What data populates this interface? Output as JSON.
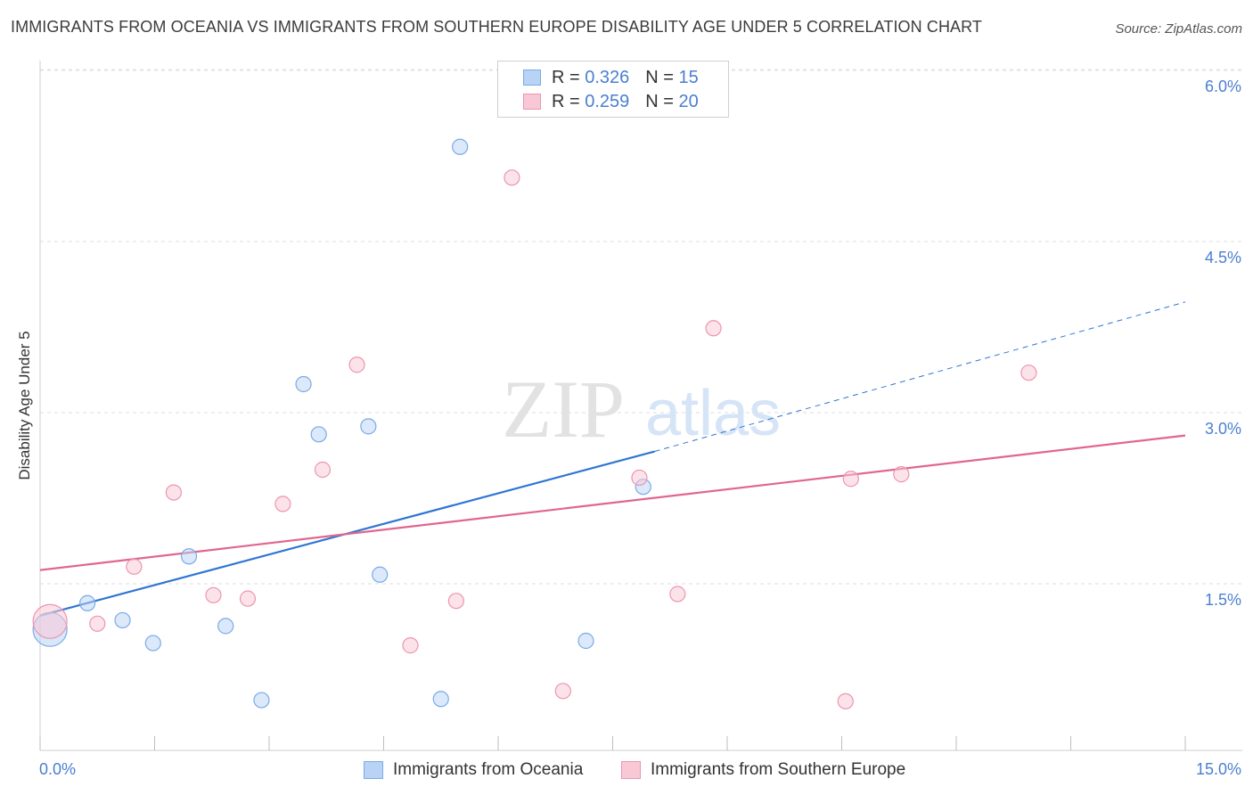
{
  "title": "IMMIGRANTS FROM OCEANIA VS IMMIGRANTS FROM SOUTHERN EUROPE DISABILITY AGE UNDER 5 CORRELATION CHART",
  "source": "Source: ZipAtlas.com",
  "watermark": {
    "zip": "ZIP",
    "atlas": "atlas"
  },
  "legend": {
    "r_label": "R =",
    "n_label": "N =",
    "rows": [
      {
        "r": "0.326",
        "n": "15",
        "fill": "#b8d3f5",
        "stroke": "#7aaae6"
      },
      {
        "r": "0.259",
        "n": "20",
        "fill": "#f9c8d6",
        "stroke": "#ec95b0"
      }
    ]
  },
  "chart_data": {
    "type": "scatter",
    "title": "IMMIGRANTS FROM OCEANIA VS IMMIGRANTS FROM SOUTHERN EUROPE DISABILITY AGE UNDER 5 CORRELATION CHART",
    "xlabel": "",
    "ylabel": "Disability Age Under 5",
    "xlim": [
      0,
      15
    ],
    "ylim": [
      0,
      6.2
    ],
    "x_tick_labels": [
      "0.0%",
      "15.0%"
    ],
    "y_tick_labels": [
      "1.5%",
      "3.0%",
      "4.5%",
      "6.0%"
    ],
    "y_ticks": [
      1.5,
      3.0,
      4.5,
      6.0
    ],
    "x_ticks": [
      0,
      1.5,
      3,
      4.5,
      6,
      7.5,
      9,
      10.5,
      12,
      13.5,
      15
    ],
    "series": [
      {
        "name": "Immigrants from Oceania",
        "color": "#7aaae6",
        "fill": "#b8d3f5",
        "line_color": "#2f76d2",
        "points": [
          {
            "x": 0.13,
            "y": 1.1,
            "big": true
          },
          {
            "x": 0.62,
            "y": 1.33
          },
          {
            "x": 1.08,
            "y": 1.18
          },
          {
            "x": 1.48,
            "y": 0.98
          },
          {
            "x": 1.95,
            "y": 1.74
          },
          {
            "x": 2.43,
            "y": 1.13
          },
          {
            "x": 2.9,
            "y": 0.48
          },
          {
            "x": 3.45,
            "y": 3.25
          },
          {
            "x": 3.65,
            "y": 2.81
          },
          {
            "x": 4.3,
            "y": 2.88
          },
          {
            "x": 4.45,
            "y": 1.58
          },
          {
            "x": 5.25,
            "y": 0.49
          },
          {
            "x": 5.5,
            "y": 5.33
          },
          {
            "x": 7.15,
            "y": 1.0
          },
          {
            "x": 7.9,
            "y": 2.35
          }
        ],
        "trend": {
          "x0": 0,
          "y0": 1.22,
          "x1": 8.05,
          "y1": 2.66,
          "dash_x1": 15,
          "dash_y1": 3.97
        }
      },
      {
        "name": "Immigrants from Southern Europe",
        "color": "#ec95b0",
        "fill": "#f9c8d6",
        "line_color": "#e0668f",
        "points": [
          {
            "x": 0.13,
            "y": 1.17,
            "big": true
          },
          {
            "x": 0.75,
            "y": 1.15
          },
          {
            "x": 1.23,
            "y": 1.65
          },
          {
            "x": 1.75,
            "y": 2.3
          },
          {
            "x": 2.27,
            "y": 1.4
          },
          {
            "x": 2.72,
            "y": 1.37
          },
          {
            "x": 3.18,
            "y": 2.2
          },
          {
            "x": 3.7,
            "y": 2.5
          },
          {
            "x": 4.15,
            "y": 3.42
          },
          {
            "x": 4.85,
            "y": 0.96
          },
          {
            "x": 5.45,
            "y": 1.35
          },
          {
            "x": 6.18,
            "y": 5.06
          },
          {
            "x": 6.85,
            "y": 0.56
          },
          {
            "x": 7.85,
            "y": 2.43
          },
          {
            "x": 8.35,
            "y": 1.41
          },
          {
            "x": 8.82,
            "y": 3.74
          },
          {
            "x": 10.55,
            "y": 0.47
          },
          {
            "x": 10.62,
            "y": 2.42
          },
          {
            "x": 11.28,
            "y": 2.46
          },
          {
            "x": 12.95,
            "y": 3.35
          }
        ],
        "trend": {
          "x0": 0,
          "y0": 1.62,
          "x1": 15,
          "y1": 2.8
        }
      }
    ]
  }
}
